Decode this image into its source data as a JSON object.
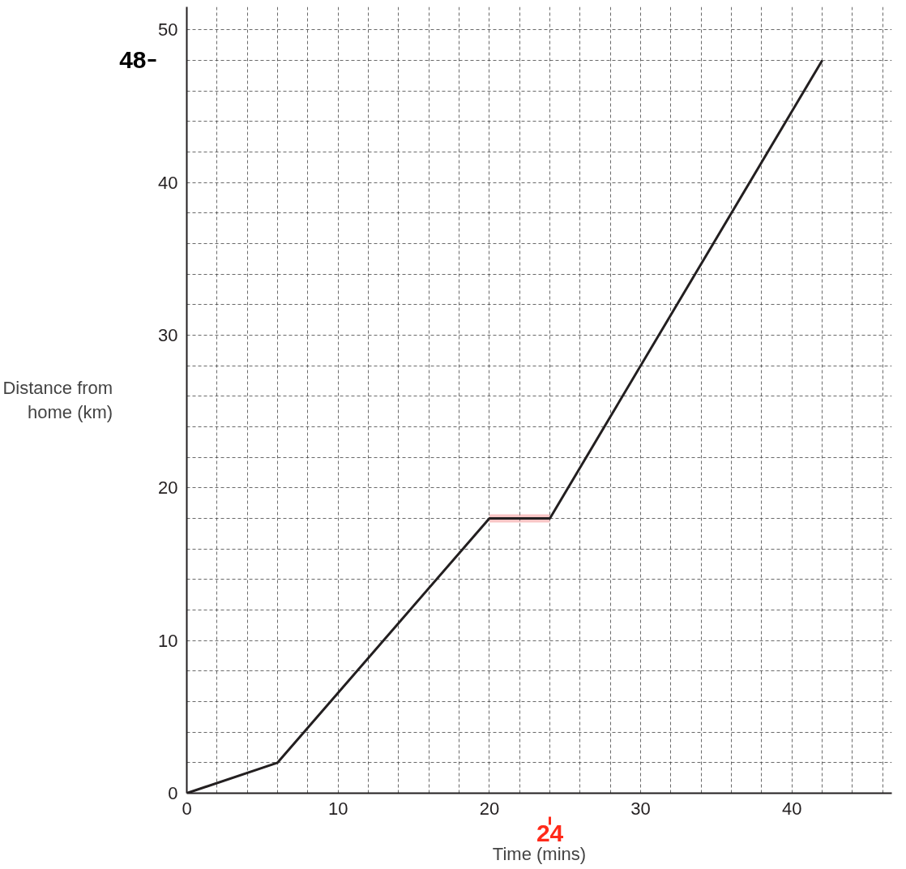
{
  "chart_data": {
    "type": "line",
    "xlabel": "Time (mins)",
    "ylabel": "Distance from\nhome (km)",
    "x": [
      0,
      6,
      20,
      24,
      42
    ],
    "series": [
      {
        "color": "#231f20",
        "values": [
          0,
          2,
          18,
          18,
          48
        ]
      },
      {
        "color": "#f9c5c5",
        "x": [
          20,
          24
        ],
        "values": [
          18,
          18
        ]
      }
    ],
    "xlim": [
      0,
      46.6
    ],
    "ylim": [
      0,
      51.5
    ],
    "xticks": [
      0,
      {
        "value": 2,
        "label": null
      },
      {
        "value": 4,
        "label": null
      },
      {
        "value": 6,
        "label": null
      },
      {
        "value": 8,
        "label": null
      },
      10,
      {
        "value": 12,
        "label": null
      },
      {
        "value": 14,
        "label": null
      },
      {
        "value": 16,
        "label": null
      },
      {
        "value": 18,
        "label": null
      },
      20,
      {
        "value": 22,
        "label": null
      },
      {
        "value": 24,
        "label": null
      },
      {
        "value": 26,
        "label": null
      },
      {
        "value": 28,
        "label": null
      },
      30,
      {
        "value": 32,
        "label": null
      },
      {
        "value": 34,
        "label": null
      },
      {
        "value": 36,
        "label": null
      },
      {
        "value": 38,
        "label": null
      },
      40,
      {
        "value": 42,
        "label": null
      },
      {
        "value": 44,
        "label": null
      },
      {
        "value": 46,
        "label": null
      }
    ],
    "yticks": [
      0,
      {
        "value": 2,
        "label": null
      },
      {
        "value": 4,
        "label": null
      },
      {
        "value": 6,
        "label": null
      },
      {
        "value": 8,
        "label": null
      },
      10,
      {
        "value": 12,
        "label": null
      },
      {
        "value": 14,
        "label": null
      },
      {
        "value": 16,
        "label": null
      },
      {
        "value": 18,
        "label": null
      },
      20,
      {
        "value": 22,
        "label": null
      },
      {
        "value": 24,
        "label": null
      },
      {
        "value": 26,
        "label": null
      },
      {
        "value": 28,
        "label": null
      },
      30,
      {
        "value": 32,
        "label": null
      },
      {
        "value": 34,
        "label": null
      },
      {
        "value": 36,
        "label": null
      },
      {
        "value": 38,
        "label": null
      },
      40,
      {
        "value": 42,
        "label": null
      },
      {
        "value": 44,
        "label": null
      },
      {
        "value": 46,
        "label": null
      },
      {
        "value": 48,
        "label": null
      },
      50
    ],
    "grid": true,
    "line_style": "solid",
    "marker": "none",
    "annotations": [
      "48",
      "24"
    ]
  }
}
